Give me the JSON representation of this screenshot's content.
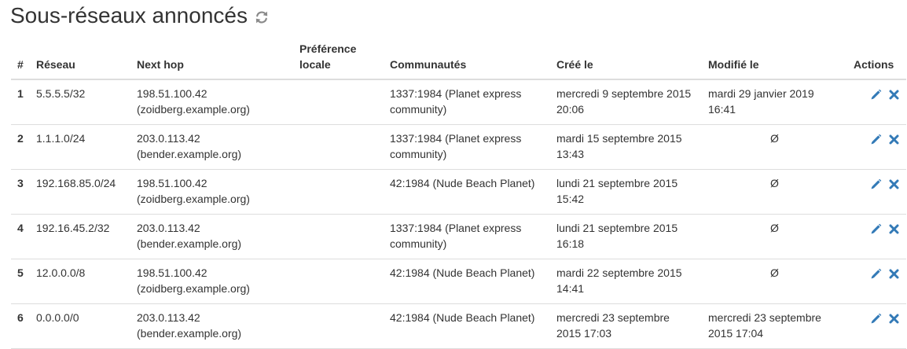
{
  "page": {
    "title": "Sous-réseaux annoncés",
    "refresh_icon": "refresh-icon"
  },
  "colors": {
    "text": "#333333",
    "accent": "#337ab7",
    "border": "#dddddd"
  },
  "table": {
    "headers": {
      "num": "#",
      "reseau": "Réseau",
      "next_hop": "Next hop",
      "preference_line1": "Préférence",
      "preference_line2": "locale",
      "communautes": "Communautés",
      "cree": "Créé le",
      "modifie": "Modifié le",
      "actions": "Actions"
    },
    "rows": [
      {
        "num": "1",
        "reseau": "5.5.5.5/32",
        "next_hop_ip": "198.51.100.42",
        "next_hop_host": "(zoidberg.example.org)",
        "preference": "",
        "communautes": "1337:1984 (Planet express community)",
        "cree": "mercredi 9 septembre 2015 20:06",
        "modifie": "mardi 29 janvier 2019 16:41",
        "edit_icon": "pencil-icon",
        "delete_icon": "delete-icon"
      },
      {
        "num": "2",
        "reseau": "1.1.1.0/24",
        "next_hop_ip": "203.0.113.42",
        "next_hop_host": "(bender.example.org)",
        "preference": "",
        "communautes": "1337:1984 (Planet express community)",
        "cree": "mardi 15 septembre 2015 13:43",
        "modifie": "Ø",
        "edit_icon": "pencil-icon",
        "delete_icon": "delete-icon"
      },
      {
        "num": "3",
        "reseau": "192.168.85.0/24",
        "next_hop_ip": "198.51.100.42",
        "next_hop_host": "(zoidberg.example.org)",
        "preference": "",
        "communautes": "42:1984 (Nude Beach Planet)",
        "cree": "lundi 21 septembre 2015 15:42",
        "modifie": "Ø",
        "edit_icon": "pencil-icon",
        "delete_icon": "delete-icon"
      },
      {
        "num": "4",
        "reseau": "192.16.45.2/32",
        "next_hop_ip": "203.0.113.42",
        "next_hop_host": "(bender.example.org)",
        "preference": "",
        "communautes": "1337:1984 (Planet express community)",
        "cree": "lundi 21 septembre 2015 16:18",
        "modifie": "Ø",
        "edit_icon": "pencil-icon",
        "delete_icon": "delete-icon"
      },
      {
        "num": "5",
        "reseau": "12.0.0.0/8",
        "next_hop_ip": "198.51.100.42",
        "next_hop_host": "(zoidberg.example.org)",
        "preference": "",
        "communautes": "42:1984 (Nude Beach Planet)",
        "cree": "mardi 22 septembre 2015 14:41",
        "modifie": "Ø",
        "edit_icon": "pencil-icon",
        "delete_icon": "delete-icon"
      },
      {
        "num": "6",
        "reseau": "0.0.0.0/0",
        "next_hop_ip": "203.0.113.42",
        "next_hop_host": "(bender.example.org)",
        "preference": "",
        "communautes": "42:1984 (Nude Beach Planet)",
        "cree": "mercredi 23 septembre 2015 17:03",
        "modifie": "mercredi 23 septembre 2015 17:04",
        "edit_icon": "pencil-icon",
        "delete_icon": "delete-icon"
      }
    ]
  }
}
